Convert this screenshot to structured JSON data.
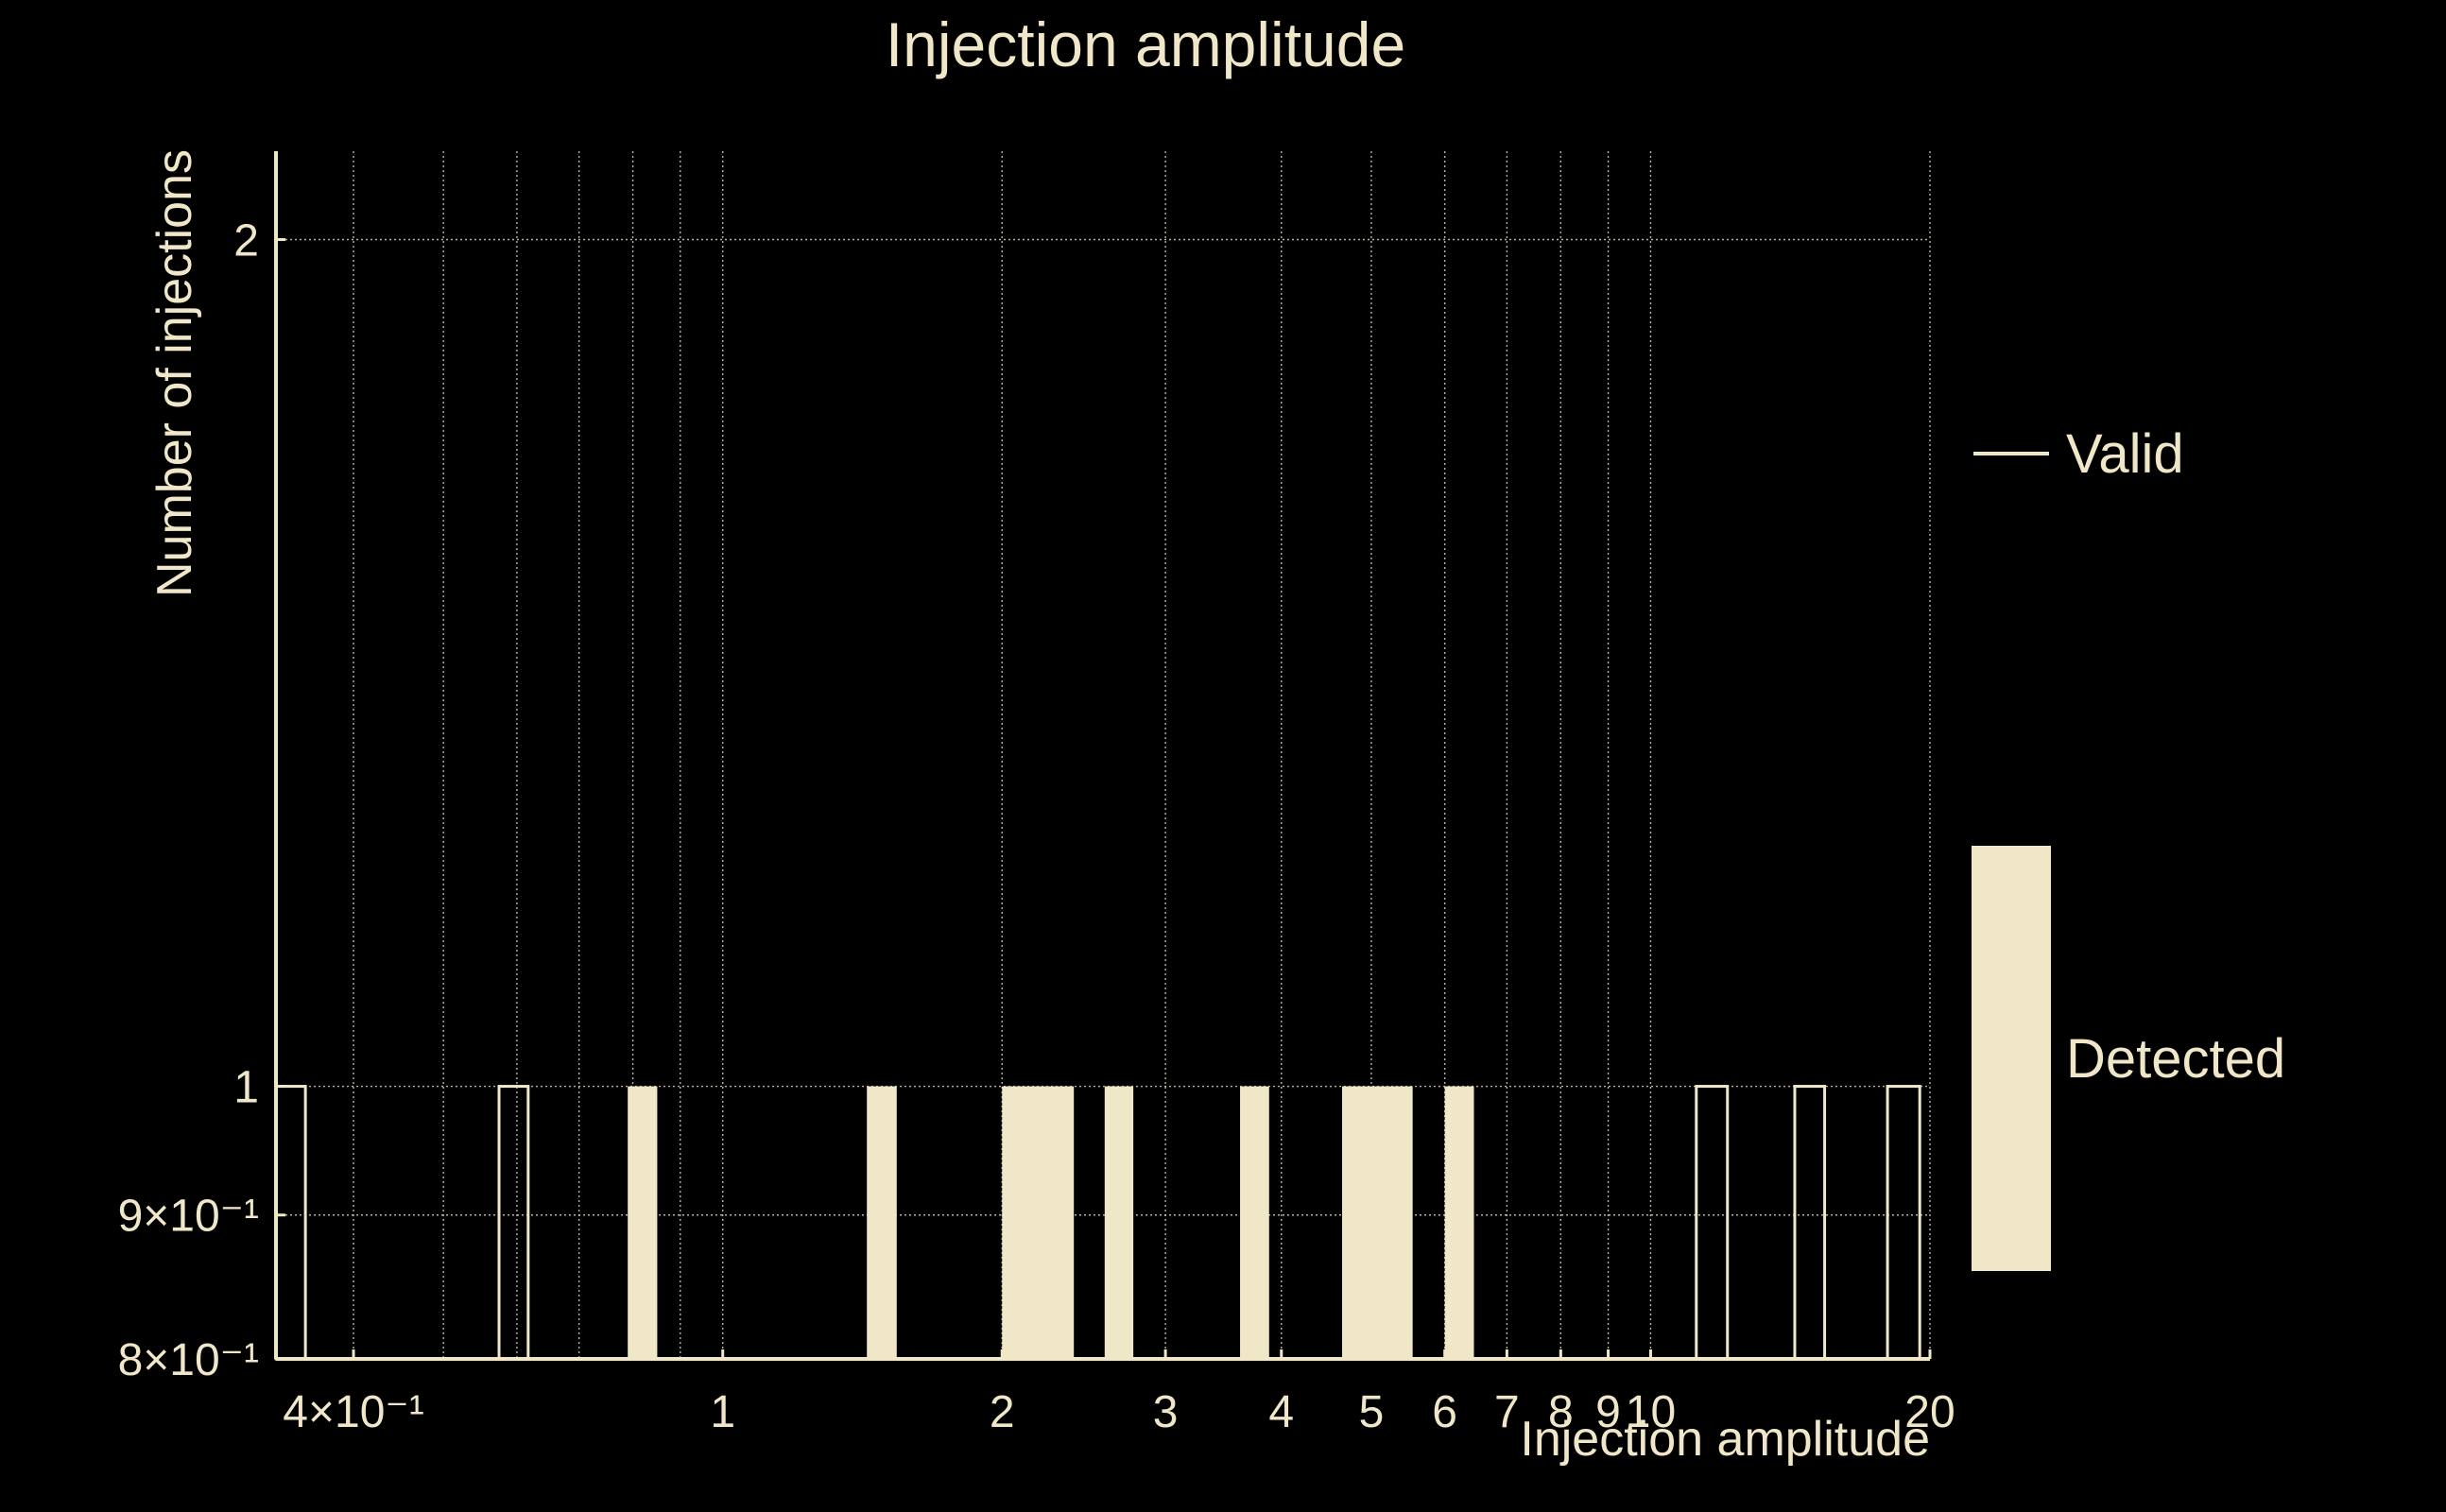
{
  "chart_data": {
    "type": "bar",
    "title": "Injection amplitude",
    "xlabel": "Injection amplitude",
    "ylabel": "Number of injections",
    "xscale": "log",
    "yscale": "log",
    "xlim": [
      0.33,
      20
    ],
    "ylim": [
      0.8,
      2.15
    ],
    "grid": true,
    "legend_position": "right",
    "x_ticks": [
      {
        "value": 0.4,
        "label": "4×10⁻¹"
      },
      {
        "value": 1,
        "label": "1"
      },
      {
        "value": 2,
        "label": "2"
      },
      {
        "value": 3,
        "label": "3"
      },
      {
        "value": 4,
        "label": "4"
      },
      {
        "value": 5,
        "label": "5"
      },
      {
        "value": 6,
        "label": "6"
      },
      {
        "value": 7,
        "label": "7"
      },
      {
        "value": 8,
        "label": "8"
      },
      {
        "value": 9,
        "label": "9"
      },
      {
        "value": 10,
        "label": "10"
      },
      {
        "value": 20,
        "label": "20"
      }
    ],
    "x_grid_values": [
      0.4,
      0.5,
      0.6,
      0.7,
      0.8,
      0.9,
      1,
      2,
      3,
      4,
      5,
      6,
      7,
      8,
      9,
      10,
      20
    ],
    "y_ticks": [
      {
        "value": 0.8,
        "label": "8×10⁻¹"
      },
      {
        "value": 0.9,
        "label": "9×10⁻¹"
      },
      {
        "value": 1,
        "label": "1"
      },
      {
        "value": 2,
        "label": "2"
      }
    ],
    "series": [
      {
        "name": "Valid",
        "style": "outline",
        "color": "#f0e6c8",
        "bins": [
          {
            "x0": 0.33,
            "x1": 0.355,
            "value": 1
          },
          {
            "x0": 0.574,
            "x1": 0.617,
            "value": 1
          },
          {
            "x0": 11.2,
            "x1": 12.1,
            "value": 1
          },
          {
            "x0": 14.3,
            "x1": 15.4,
            "value": 1
          },
          {
            "x0": 18.0,
            "x1": 19.5,
            "value": 1
          }
        ]
      },
      {
        "name": "Detected",
        "style": "filled",
        "color": "#f0e6c8",
        "bins": [
          {
            "x0": 0.79,
            "x1": 0.85,
            "value": 1
          },
          {
            "x0": 1.43,
            "x1": 1.54,
            "value": 1
          },
          {
            "x0": 2.0,
            "x1": 2.39,
            "value": 1
          },
          {
            "x0": 2.58,
            "x1": 2.77,
            "value": 1
          },
          {
            "x0": 3.61,
            "x1": 3.88,
            "value": 1
          },
          {
            "x0": 4.65,
            "x1": 5.54,
            "value": 1
          },
          {
            "x0": 6.0,
            "x1": 6.45,
            "value": 1
          }
        ]
      }
    ]
  }
}
